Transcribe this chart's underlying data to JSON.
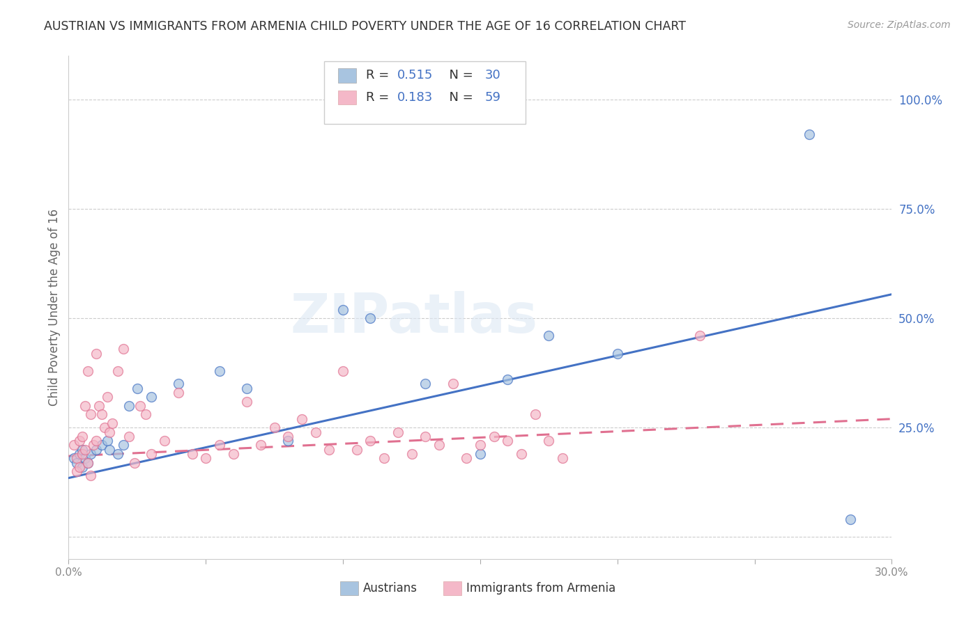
{
  "title": "AUSTRIAN VS IMMIGRANTS FROM ARMENIA CHILD POVERTY UNDER THE AGE OF 16 CORRELATION CHART",
  "source": "Source: ZipAtlas.com",
  "ylabel": "Child Poverty Under the Age of 16",
  "xlim": [
    0.0,
    0.3
  ],
  "ylim": [
    -0.05,
    1.1
  ],
  "xticks": [
    0.0,
    0.05,
    0.1,
    0.15,
    0.2,
    0.25,
    0.3
  ],
  "xticklabels": [
    "0.0%",
    "",
    "",
    "",
    "",
    "",
    "30.0%"
  ],
  "yticks": [
    0.0,
    0.25,
    0.5,
    0.75,
    1.0
  ],
  "yticklabels": [
    "",
    "25.0%",
    "50.0%",
    "75.0%",
    "100.0%"
  ],
  "blue_color": "#a8c4e0",
  "pink_color": "#f4b8c8",
  "blue_line_color": "#4472c4",
  "pink_line_color": "#e07090",
  "watermark": "ZIPatlas",
  "blue_trend_x0": 0.0,
  "blue_trend_y0": 0.135,
  "blue_trend_x1": 0.3,
  "blue_trend_y1": 0.555,
  "pink_trend_x0": 0.0,
  "pink_trend_y0": 0.185,
  "pink_trend_x1": 0.3,
  "pink_trend_y1": 0.27,
  "austrians_x": [
    0.002,
    0.003,
    0.004,
    0.005,
    0.005,
    0.006,
    0.007,
    0.008,
    0.01,
    0.012,
    0.014,
    0.015,
    0.018,
    0.02,
    0.022,
    0.025,
    0.03,
    0.04,
    0.055,
    0.065,
    0.08,
    0.1,
    0.11,
    0.13,
    0.15,
    0.16,
    0.175,
    0.2,
    0.27,
    0.285
  ],
  "austrians_y": [
    0.18,
    0.17,
    0.19,
    0.2,
    0.16,
    0.18,
    0.17,
    0.19,
    0.2,
    0.21,
    0.22,
    0.2,
    0.19,
    0.21,
    0.3,
    0.34,
    0.32,
    0.35,
    0.38,
    0.34,
    0.22,
    0.52,
    0.5,
    0.35,
    0.19,
    0.36,
    0.46,
    0.42,
    0.92,
    0.04
  ],
  "armenia_x": [
    0.002,
    0.003,
    0.003,
    0.004,
    0.004,
    0.005,
    0.005,
    0.006,
    0.006,
    0.007,
    0.007,
    0.008,
    0.008,
    0.009,
    0.01,
    0.01,
    0.011,
    0.012,
    0.013,
    0.014,
    0.015,
    0.016,
    0.018,
    0.02,
    0.022,
    0.024,
    0.026,
    0.028,
    0.03,
    0.035,
    0.04,
    0.045,
    0.05,
    0.055,
    0.06,
    0.065,
    0.07,
    0.075,
    0.08,
    0.085,
    0.09,
    0.095,
    0.1,
    0.105,
    0.11,
    0.115,
    0.12,
    0.125,
    0.13,
    0.135,
    0.14,
    0.145,
    0.15,
    0.155,
    0.16,
    0.165,
    0.17,
    0.175,
    0.18,
    0.23
  ],
  "armenia_y": [
    0.21,
    0.18,
    0.15,
    0.22,
    0.16,
    0.19,
    0.23,
    0.2,
    0.3,
    0.17,
    0.38,
    0.28,
    0.14,
    0.21,
    0.22,
    0.42,
    0.3,
    0.28,
    0.25,
    0.32,
    0.24,
    0.26,
    0.38,
    0.43,
    0.23,
    0.17,
    0.3,
    0.28,
    0.19,
    0.22,
    0.33,
    0.19,
    0.18,
    0.21,
    0.19,
    0.31,
    0.21,
    0.25,
    0.23,
    0.27,
    0.24,
    0.2,
    0.38,
    0.2,
    0.22,
    0.18,
    0.24,
    0.19,
    0.23,
    0.21,
    0.35,
    0.18,
    0.21,
    0.23,
    0.22,
    0.19,
    0.28,
    0.22,
    0.18,
    0.46
  ],
  "background_color": "#ffffff",
  "grid_color": "#cccccc",
  "title_color": "#333333",
  "axis_label_color": "#666666",
  "ytick_label_color": "#4472c4",
  "text_color": "#333333",
  "r_n_color": "#4472c4"
}
